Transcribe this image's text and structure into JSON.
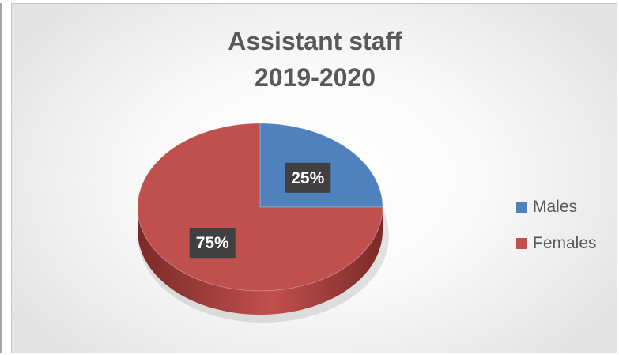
{
  "chart_data": {
    "type": "pie",
    "title_lines": [
      "Assistant staff",
      "2019-2020"
    ],
    "categories": [
      "Males",
      "Females"
    ],
    "values": [
      25,
      75
    ],
    "labels": [
      "25%",
      "75%"
    ],
    "colors": [
      "#4f81bd",
      "#c0504d"
    ],
    "side_colors": [
      "#2f4f7a",
      "#7b2a27"
    ],
    "style": "3d",
    "legend": {
      "position": "right",
      "entries": [
        "Males",
        "Females"
      ]
    }
  }
}
